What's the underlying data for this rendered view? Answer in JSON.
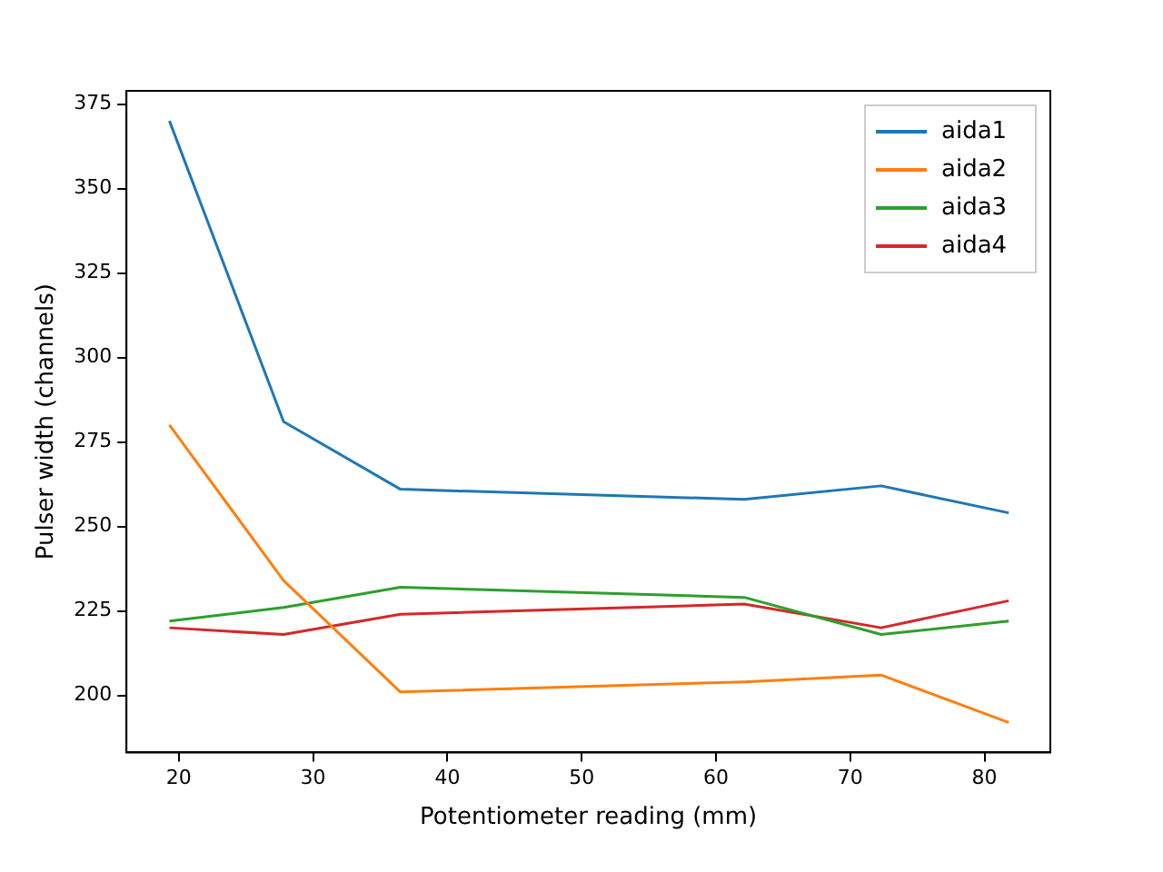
{
  "chart_data": {
    "type": "line",
    "xlabel": "Potentiometer reading (mm)",
    "ylabel": "Pulser width (channels)",
    "x": [
      19.3,
      27.8,
      36.5,
      62.1,
      72.3,
      81.8
    ],
    "series": [
      {
        "name": "aida1",
        "color": "#1f77b4",
        "values": [
          370,
          281,
          261,
          258,
          262,
          254
        ]
      },
      {
        "name": "aida2",
        "color": "#ff7f0e",
        "values": [
          280,
          234,
          201,
          204,
          206,
          192
        ]
      },
      {
        "name": "aida3",
        "color": "#2ca02c",
        "values": [
          222,
          226,
          232,
          229,
          218,
          222
        ]
      },
      {
        "name": "aida4",
        "color": "#d62728",
        "values": [
          220,
          218,
          224,
          227,
          220,
          228
        ]
      }
    ],
    "xlim": [
      16.1,
      84.9
    ],
    "xticks": [
      20,
      30,
      40,
      50,
      60,
      70,
      80
    ],
    "ylim": [
      183.1,
      378.9
    ],
    "yticks": [
      200,
      225,
      250,
      275,
      300,
      325,
      350,
      375
    ],
    "grid": false,
    "legend": "top right",
    "marker": "none",
    "line_style": "solid"
  }
}
